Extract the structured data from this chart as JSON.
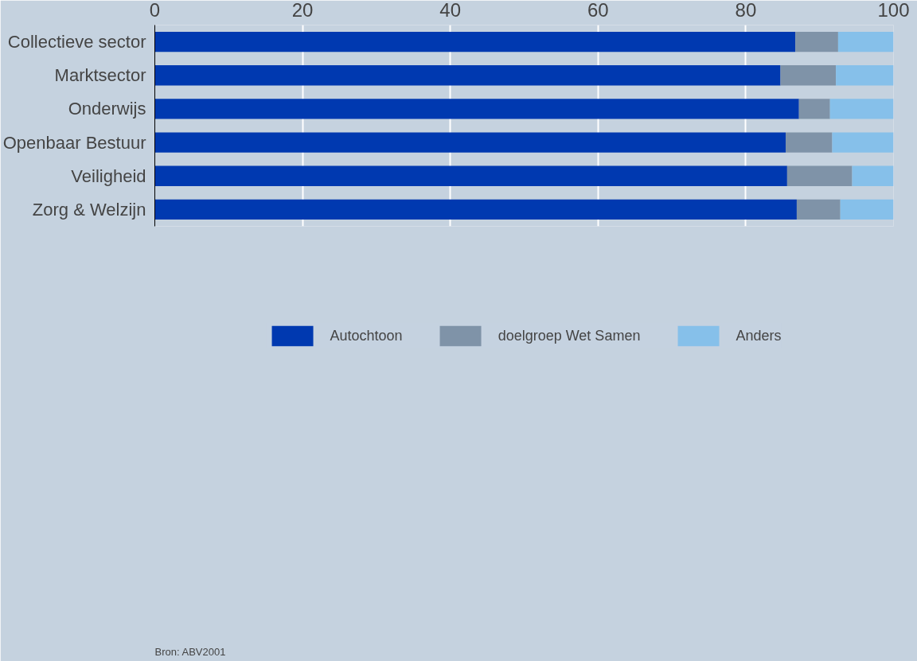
{
  "chart_data": {
    "type": "bar",
    "orientation": "horizontal",
    "stacked": true,
    "categories": [
      "Collectieve sector",
      "Marktsector",
      "Onderwijs",
      "Openbaar Bestuur",
      "Veiligheid",
      "Zorg & Welzijn"
    ],
    "series": [
      {
        "name": "Autochtoon",
        "color": "#0039b0",
        "values": [
          86.7,
          84.7,
          87.2,
          85.4,
          85.6,
          86.9
        ]
      },
      {
        "name": "doelgroep Wet Samen",
        "color": "#7f93a8",
        "values": [
          5.8,
          7.5,
          4.2,
          6.3,
          8.8,
          5.9
        ]
      },
      {
        "name": "Anders",
        "color": "#86c0ea",
        "values": [
          7.5,
          7.8,
          8.6,
          8.3,
          5.6,
          7.2
        ]
      }
    ],
    "xlim": [
      0,
      100
    ],
    "xticks": [
      0,
      20,
      40,
      60,
      80,
      100
    ],
    "grid": "x",
    "legend": "bottom",
    "annotations": [
      "Bron: ABV2001"
    ]
  }
}
